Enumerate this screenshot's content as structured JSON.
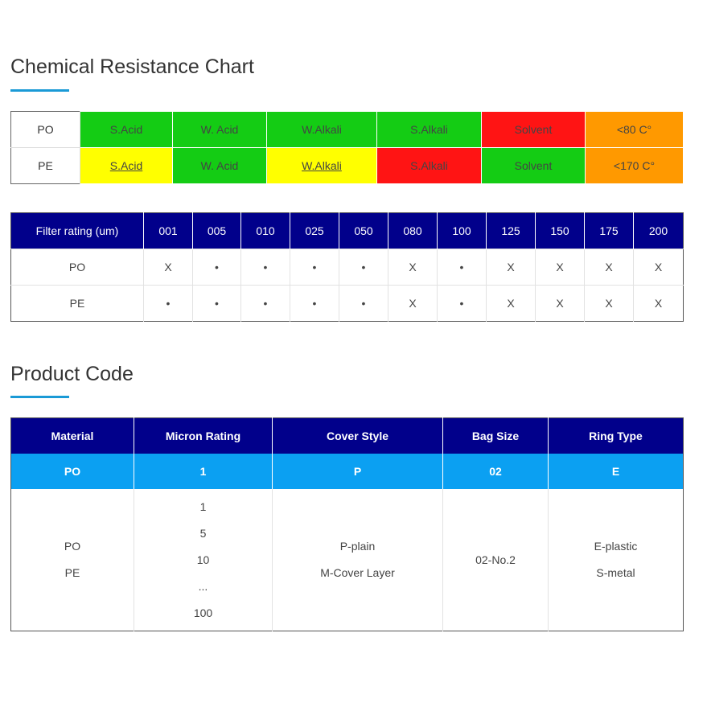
{
  "chemical": {
    "title": "Chemical Resistance Chart",
    "rows": [
      {
        "material": "PO",
        "cells": [
          {
            "text": "S.Acid",
            "level": "green"
          },
          {
            "text": "W. Acid",
            "level": "green"
          },
          {
            "text": "W.Alkali",
            "level": "green"
          },
          {
            "text": "S.Alkali",
            "level": "green"
          },
          {
            "text": "Solvent",
            "level": "red"
          },
          {
            "text": "<80 C°",
            "level": "orange"
          }
        ]
      },
      {
        "material": "PE",
        "cells": [
          {
            "text": "S.Acid",
            "level": "yellow"
          },
          {
            "text": "W. Acid",
            "level": "green"
          },
          {
            "text": "W.Alkali",
            "level": "yellow"
          },
          {
            "text": "S.Alkali",
            "level": "red"
          },
          {
            "text": "Solvent",
            "level": "green"
          },
          {
            "text": "<170 C°",
            "level": "orange"
          }
        ]
      }
    ],
    "colors": {
      "green": "#14cc14",
      "yellow": "#ffff00",
      "red": "#ff1414",
      "orange": "#ff9900"
    }
  },
  "filter": {
    "header_label": "Filter rating (um)",
    "ratings": [
      "001",
      "005",
      "010",
      "025",
      "050",
      "080",
      "100",
      "125",
      "150",
      "175",
      "200"
    ],
    "rows": [
      {
        "material": "PO",
        "values": [
          "X",
          "•",
          "•",
          "•",
          "•",
          "X",
          "•",
          "X",
          "X",
          "X",
          "X"
        ]
      },
      {
        "material": "PE",
        "values": [
          "•",
          "•",
          "•",
          "•",
          "•",
          "X",
          "•",
          "X",
          "X",
          "X",
          "X"
        ]
      }
    ],
    "header_color": "#01008b"
  },
  "product_code": {
    "title": "Product Code",
    "headers": [
      "Material",
      "Micron Rating",
      "Cover Style",
      "Bag Size",
      "Ring Type"
    ],
    "example": [
      "PO",
      "1",
      "P",
      "02",
      "E"
    ],
    "options": [
      [
        "PO",
        "PE"
      ],
      [
        "1",
        "5",
        "10",
        "...",
        "100"
      ],
      [
        "P-plain",
        "M-Cover Layer"
      ],
      [
        "02-No.2"
      ],
      [
        "E-plastic",
        "S-metal"
      ]
    ],
    "header_color": "#01008b",
    "example_color": "#0ba0f2",
    "accent_color": "#1a9ad6"
  }
}
